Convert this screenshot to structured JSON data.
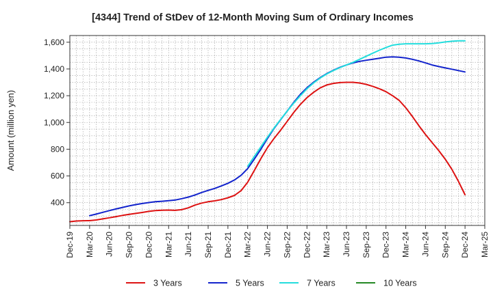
{
  "chart_data": {
    "type": "line",
    "title": "[4344]  Trend of StDev of 12-Month Moving Sum of Ordinary Incomes",
    "xlabel": "",
    "ylabel": "Amount (million yen)",
    "ylim": [
      230,
      1650
    ],
    "y_ticks": [
      400,
      600,
      800,
      1000,
      1200,
      1400,
      1600
    ],
    "y_tick_labels": [
      "400",
      "600",
      "800",
      "1,000",
      "1,200",
      "1,400",
      "1,600"
    ],
    "x_range": [
      "2019-12",
      "2025-03"
    ],
    "x_tick_labels": [
      "Dec-19",
      "Mar-20",
      "Jun-20",
      "Sep-20",
      "Dec-20",
      "Mar-21",
      "Jun-21",
      "Sep-21",
      "Dec-21",
      "Mar-22",
      "Jun-22",
      "Sep-22",
      "Dec-22",
      "Mar-23",
      "Jun-23",
      "Sep-23",
      "Dec-23",
      "Mar-24",
      "Jun-24",
      "Sep-24",
      "Dec-24",
      "Mar-25"
    ],
    "grid": true,
    "legend_position": "bottom",
    "series": [
      {
        "name": "3 Years",
        "color": "#dd1111",
        "x": [
          "2019-12",
          "2020-01",
          "2020-02",
          "2020-03",
          "2020-04",
          "2020-05",
          "2020-06",
          "2020-07",
          "2020-08",
          "2020-09",
          "2020-10",
          "2020-11",
          "2020-12",
          "2021-01",
          "2021-02",
          "2021-03",
          "2021-04",
          "2021-05",
          "2021-06",
          "2021-07",
          "2021-08",
          "2021-09",
          "2021-10",
          "2021-11",
          "2021-12",
          "2022-01",
          "2022-02",
          "2022-03",
          "2022-04",
          "2022-05",
          "2022-06",
          "2022-07",
          "2022-08",
          "2022-09",
          "2022-10",
          "2022-11",
          "2022-12",
          "2023-01",
          "2023-02",
          "2023-03",
          "2023-04",
          "2023-05",
          "2023-06",
          "2023-07",
          "2023-08",
          "2023-09",
          "2023-10",
          "2023-11",
          "2023-12",
          "2024-01",
          "2024-02",
          "2024-03",
          "2024-04",
          "2024-05",
          "2024-06",
          "2024-07",
          "2024-08",
          "2024-09",
          "2024-10",
          "2024-11",
          "2024-12"
        ],
        "values": [
          258,
          263,
          265,
          266,
          271,
          279,
          287,
          296,
          305,
          313,
          320,
          327,
          335,
          341,
          344,
          345,
          343,
          348,
          362,
          382,
          397,
          407,
          414,
          423,
          437,
          455,
          490,
          553,
          640,
          730,
          812,
          880,
          942,
          1008,
          1075,
          1135,
          1185,
          1225,
          1258,
          1280,
          1292,
          1298,
          1300,
          1300,
          1295,
          1285,
          1270,
          1252,
          1230,
          1200,
          1165,
          1110,
          1045,
          975,
          910,
          850,
          790,
          725,
          650,
          560,
          460
        ]
      },
      {
        "name": "5 Years",
        "color": "#1122cc",
        "x": [
          "2020-03",
          "2020-04",
          "2020-05",
          "2020-06",
          "2020-07",
          "2020-08",
          "2020-09",
          "2020-10",
          "2020-11",
          "2020-12",
          "2021-01",
          "2021-02",
          "2021-03",
          "2021-04",
          "2021-05",
          "2021-06",
          "2021-07",
          "2021-08",
          "2021-09",
          "2021-10",
          "2021-11",
          "2021-12",
          "2022-01",
          "2022-02",
          "2022-03",
          "2022-04",
          "2022-05",
          "2022-06",
          "2022-07",
          "2022-08",
          "2022-09",
          "2022-10",
          "2022-11",
          "2022-12",
          "2023-01",
          "2023-02",
          "2023-03",
          "2023-04",
          "2023-05",
          "2023-06",
          "2023-07",
          "2023-08",
          "2023-09",
          "2023-10",
          "2023-11",
          "2023-12",
          "2024-01",
          "2024-02",
          "2024-03",
          "2024-04",
          "2024-05",
          "2024-06",
          "2024-07",
          "2024-08",
          "2024-09",
          "2024-10",
          "2024-11",
          "2024-12"
        ],
        "values": [
          303,
          315,
          328,
          341,
          353,
          365,
          376,
          386,
          394,
          401,
          407,
          411,
          415,
          420,
          430,
          442,
          458,
          476,
          492,
          507,
          525,
          545,
          570,
          605,
          655,
          725,
          800,
          880,
          955,
          1020,
          1085,
          1150,
          1210,
          1260,
          1300,
          1335,
          1365,
          1390,
          1412,
          1430,
          1445,
          1457,
          1465,
          1472,
          1480,
          1488,
          1490,
          1488,
          1482,
          1472,
          1460,
          1445,
          1430,
          1418,
          1408,
          1398,
          1388,
          1378
        ]
      },
      {
        "name": "7 Years",
        "color": "#22dddd",
        "x": [
          "2022-03",
          "2022-04",
          "2022-05",
          "2022-06",
          "2022-07",
          "2022-08",
          "2022-09",
          "2022-10",
          "2022-11",
          "2022-12",
          "2023-01",
          "2023-02",
          "2023-03",
          "2023-04",
          "2023-05",
          "2023-06",
          "2023-07",
          "2023-08",
          "2023-09",
          "2023-10",
          "2023-11",
          "2023-12",
          "2024-01",
          "2024-02",
          "2024-03",
          "2024-04",
          "2024-05",
          "2024-06",
          "2024-07",
          "2024-08",
          "2024-09",
          "2024-10",
          "2024-11",
          "2024-12"
        ],
        "values": [
          672,
          745,
          818,
          890,
          958,
          1022,
          1085,
          1145,
          1200,
          1252,
          1295,
          1332,
          1362,
          1388,
          1410,
          1430,
          1450,
          1472,
          1495,
          1518,
          1540,
          1560,
          1578,
          1585,
          1588,
          1588,
          1588,
          1588,
          1590,
          1595,
          1602,
          1607,
          1610,
          1610
        ]
      },
      {
        "name": "10 Years",
        "color": "#228822",
        "x": [],
        "values": []
      }
    ]
  }
}
